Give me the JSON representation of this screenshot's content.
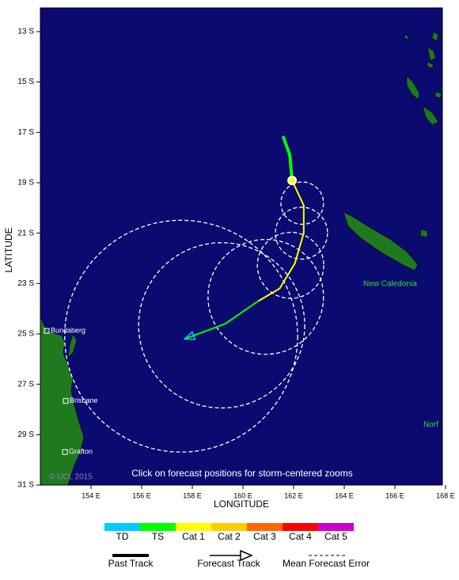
{
  "map": {
    "copyright": "© UCL 2015",
    "instruction": "Click on forecast positions for storm-centered zooms",
    "xlabel": "LONGITUDE",
    "ylabel": "LATITUDE",
    "xlim": [
      152,
      167.875
    ],
    "ylim": [
      12.06,
      31
    ],
    "xticks": [
      {
        "value": 154,
        "label": "154 E"
      },
      {
        "value": 156,
        "label": "156 E"
      },
      {
        "value": 158,
        "label": "158 E"
      },
      {
        "value": 160,
        "label": "160 E"
      },
      {
        "value": 162,
        "label": "162 E"
      },
      {
        "value": 164,
        "label": "164 E"
      },
      {
        "value": 166,
        "label": "166 E"
      },
      {
        "value": 168,
        "label": "168 E"
      }
    ],
    "yticks": [
      {
        "value": 13,
        "label": "13 S"
      },
      {
        "value": 15,
        "label": "15 S"
      },
      {
        "value": 17,
        "label": "17 S"
      },
      {
        "value": 19,
        "label": "19 S"
      },
      {
        "value": 21,
        "label": "21 S"
      },
      {
        "value": 23,
        "label": "23 S"
      },
      {
        "value": 25,
        "label": "25 S"
      },
      {
        "value": 27,
        "label": "27 S"
      },
      {
        "value": 29,
        "label": "29 S"
      },
      {
        "value": 31,
        "label": "31 S"
      }
    ],
    "places": [
      "New Caledonia",
      "Norf"
    ],
    "cities": [
      {
        "name": "Bundaberg",
        "lon": 152.25,
        "lat": 24.88
      },
      {
        "name": "Brisbane",
        "lon": 153.0,
        "lat": 27.66
      },
      {
        "name": "Grafton",
        "lon": 152.97,
        "lat": 29.69
      }
    ],
    "intensity_scale": [
      {
        "label": "TD",
        "color": "#00ccff"
      },
      {
        "label": "TS",
        "color": "#00ff00"
      },
      {
        "label": "Cat 1",
        "color": "#ffff00"
      },
      {
        "label": "Cat 2",
        "color": "#ffcc00"
      },
      {
        "label": "Cat 3",
        "color": "#ff6600"
      },
      {
        "label": "Cat 4",
        "color": "#ff0000"
      },
      {
        "label": "Cat 5",
        "color": "#cc00cc"
      }
    ],
    "line_legend": [
      "Past Track",
      "Forecast Track",
      "Mean Forecast Error"
    ],
    "past_track": [
      {
        "lon": 161.6,
        "lat": 17.2,
        "intensity": "TS"
      },
      {
        "lon": 161.85,
        "lat": 17.9,
        "intensity": "TS"
      },
      {
        "lon": 161.94,
        "lat": 18.91,
        "intensity": "Cat 1"
      }
    ],
    "forecast_track": [
      {
        "lon": 161.94,
        "lat": 18.91,
        "intensity": "Cat 1"
      },
      {
        "lon": 162.4,
        "lat": 19.9,
        "intensity": "Cat 1"
      },
      {
        "lon": 162.4,
        "lat": 21.0,
        "intensity": "Cat 1"
      },
      {
        "lon": 162.05,
        "lat": 22.2,
        "intensity": "Cat 1"
      },
      {
        "lon": 161.45,
        "lat": 23.2,
        "intensity": "Cat 1"
      },
      {
        "lon": 160.6,
        "lat": 23.7,
        "intensity": "TS"
      },
      {
        "lon": 159.3,
        "lat": 24.6,
        "intensity": "TS"
      },
      {
        "lon": 157.7,
        "lat": 25.2,
        "intensity": "TD"
      }
    ],
    "error_circles": [
      {
        "lon": 162.34,
        "lat": 19.81,
        "radius": 0.84
      },
      {
        "lon": 162.31,
        "lat": 21.0,
        "radius": 1.03
      },
      {
        "lon": 161.88,
        "lat": 22.28,
        "radius": 1.31
      },
      {
        "lon": 160.9,
        "lat": 23.53,
        "radius": 2.28
      },
      {
        "lon": 159.16,
        "lat": 24.66,
        "radius": 3.28
      },
      {
        "lon": 157.56,
        "lat": 25.09,
        "radius": 4.6
      }
    ]
  }
}
